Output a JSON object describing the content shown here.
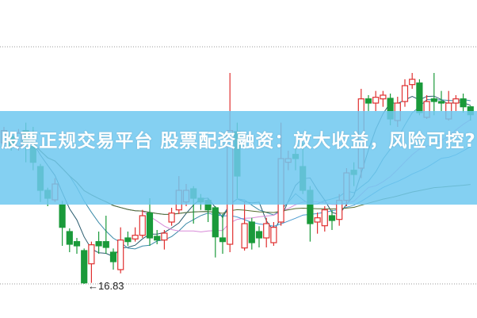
{
  "banner": {
    "title": "股票正规交易平台 股票配资融资：放大收益，风险可控?"
  },
  "chart_data": {
    "type": "candlestick",
    "title": "",
    "annotations": [
      {
        "text": "16.83",
        "kind": "low-price-marker"
      }
    ],
    "grid": "dotted horizontal lines at top and bottom",
    "colors": {
      "up": "#e03030",
      "down": "#1a9a3a",
      "ma_lines": [
        "#2a5c6e",
        "#3a8aa8",
        "#d88ad8",
        "#4a9ad0",
        "#556b2f"
      ]
    },
    "candles": [
      [
        19.5,
        19.8,
        19.43,
        19.73
      ],
      [
        19.62,
        19.7,
        19.35,
        19.43
      ],
      [
        19.43,
        19.76,
        19.35,
        19.68
      ],
      [
        19.73,
        19.88,
        19.13,
        19.5
      ],
      [
        19.43,
        19.8,
        18.98,
        19.13
      ],
      [
        19.05,
        19.1,
        18.38,
        18.6
      ],
      [
        18.6,
        18.65,
        18.3,
        18.45
      ],
      [
        18.42,
        18.83,
        18.38,
        18.72
      ],
      [
        18.33,
        18.4,
        17.55,
        17.9
      ],
      [
        17.82,
        17.88,
        17.43,
        17.58
      ],
      [
        17.63,
        17.7,
        17.4,
        17.55
      ],
      [
        17.46,
        17.5,
        16.83,
        16.85
      ],
      [
        17.21,
        17.63,
        16.85,
        17.57
      ],
      [
        17.63,
        17.82,
        17.4,
        17.55
      ],
      [
        17.63,
        18.12,
        17.4,
        17.52
      ],
      [
        17.43,
        17.5,
        17.1,
        17.25
      ],
      [
        17.1,
        17.9,
        17.03,
        17.66
      ],
      [
        17.7,
        17.82,
        17.55,
        17.63
      ],
      [
        17.68,
        17.9,
        17.63,
        17.75
      ],
      [
        17.75,
        18.23,
        17.7,
        18.12
      ],
      [
        18.17,
        18.45,
        17.55,
        17.7
      ],
      [
        17.73,
        17.85,
        17.58,
        17.66
      ],
      [
        17.66,
        17.85,
        17.48,
        17.79
      ],
      [
        18.0,
        18.27,
        17.93,
        18.17
      ],
      [
        18.23,
        18.87,
        18.15,
        18.6
      ],
      [
        18.38,
        18.72,
        18.3,
        18.6
      ],
      [
        18.63,
        18.68,
        17.97,
        18.45
      ],
      [
        18.45,
        18.53,
        18.23,
        18.38
      ],
      [
        18.41,
        18.45,
        18.0,
        18.23
      ],
      [
        18.27,
        18.3,
        17.33,
        17.72
      ],
      [
        17.7,
        18.15,
        17.4,
        17.63
      ],
      [
        17.58,
        20.82,
        17.43,
        19.73
      ],
      [
        19.71,
        19.88,
        18.45,
        18.87
      ],
      [
        17.51,
        18.38,
        17.46,
        17.97
      ],
      [
        18.0,
        18.08,
        17.48,
        17.61
      ],
      [
        17.82,
        17.92,
        17.52,
        17.7
      ],
      [
        17.7,
        18.08,
        17.52,
        17.97
      ],
      [
        17.61,
        18.0,
        17.55,
        17.9
      ],
      [
        18.0,
        19.88,
        17.93,
        19.2
      ],
      [
        19.13,
        19.35,
        18.98,
        19.2
      ],
      [
        19.28,
        19.43,
        18.98,
        19.2
      ],
      [
        19.05,
        19.5,
        18.53,
        18.6
      ],
      [
        18.6,
        18.68,
        17.63,
        17.97
      ],
      [
        18.0,
        18.18,
        17.78,
        18.08
      ],
      [
        17.93,
        18.3,
        17.82,
        18.23
      ],
      [
        18.12,
        18.23,
        17.85,
        18.03
      ],
      [
        18.05,
        18.53,
        17.93,
        18.41
      ],
      [
        18.41,
        19.02,
        18.3,
        18.93
      ],
      [
        18.98,
        19.13,
        18.68,
        18.9
      ],
      [
        19.02,
        20.52,
        18.83,
        20.33
      ],
      [
        20.33,
        20.4,
        20.1,
        20.25
      ],
      [
        20.25,
        20.48,
        20.1,
        20.36
      ],
      [
        20.33,
        20.48,
        20.18,
        20.4
      ],
      [
        20.34,
        20.43,
        19.83,
        19.95
      ],
      [
        19.92,
        20.37,
        19.8,
        20.25
      ],
      [
        20.28,
        20.7,
        20.18,
        20.58
      ],
      [
        20.6,
        20.82,
        20.52,
        20.7
      ],
      [
        20.63,
        20.7,
        20.02,
        20.07
      ],
      [
        19.98,
        20.4,
        19.95,
        20.28
      ],
      [
        20.33,
        20.82,
        20.02,
        20.28
      ],
      [
        20.28,
        20.48,
        20.1,
        20.25
      ],
      [
        19.95,
        20.48,
        19.92,
        20.25
      ],
      [
        20.25,
        20.4,
        20.1,
        20.33
      ],
      [
        20.33,
        20.43,
        20.07,
        20.18
      ],
      [
        20.18,
        20.2,
        19.92,
        20.03
      ]
    ],
    "candle_format": [
      "open",
      "high",
      "low",
      "close"
    ],
    "moving_average_periods": [
      5,
      10,
      20,
      30,
      60
    ]
  }
}
